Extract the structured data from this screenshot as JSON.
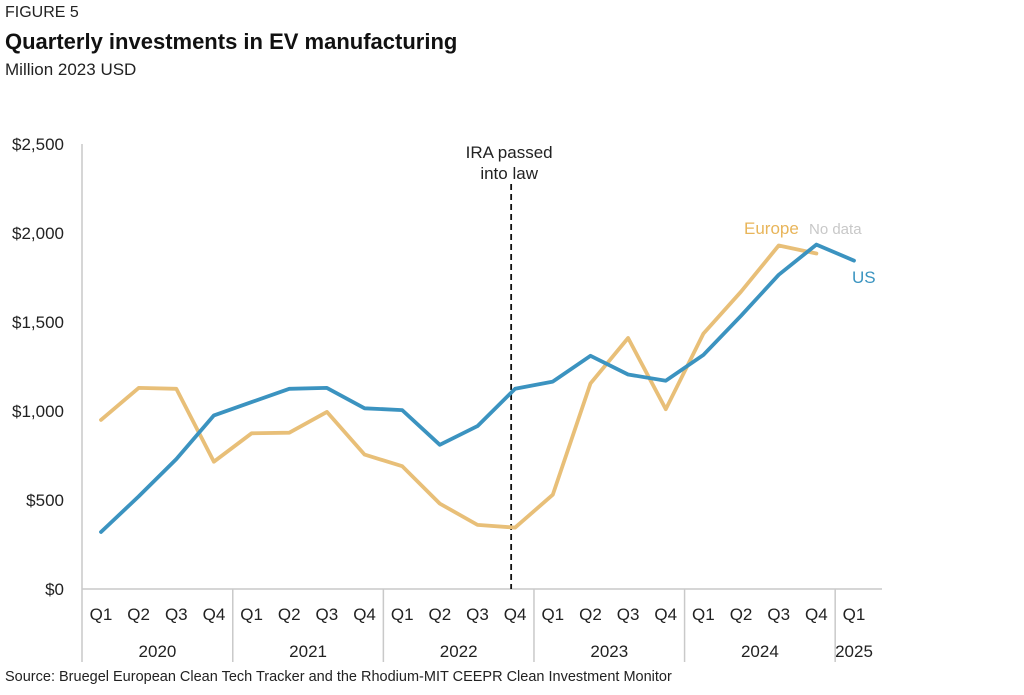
{
  "figure_label": "FIGURE 5",
  "title": "Quarterly investments in EV manufacturing",
  "subtitle": "Million 2023 USD",
  "source": "Source: Bruegel European Clean Tech Tracker and the Rhodium-MIT CEEPR Clean Investment Monitor",
  "colors": {
    "europe": "#e8bf78",
    "us": "#3b93c0",
    "axis": "#c9c9c9",
    "divider": "#c9c9c9"
  },
  "chart_data": {
    "type": "line",
    "ylim": [
      0,
      2500
    ],
    "y_ticks": [
      0,
      500,
      1000,
      1500,
      2000,
      2500
    ],
    "y_tick_labels": [
      "$0",
      "$500",
      "$1,000",
      "$1,500",
      "$2,000",
      "$2,500"
    ],
    "quarters": [
      "Q1",
      "Q2",
      "Q3",
      "Q4",
      "Q1",
      "Q2",
      "Q3",
      "Q4",
      "Q1",
      "Q2",
      "Q3",
      "Q4",
      "Q1",
      "Q2",
      "Q3",
      "Q4",
      "Q1",
      "Q2",
      "Q3",
      "Q4",
      "Q1"
    ],
    "years": [
      {
        "label": "2020",
        "start": 0,
        "end": 3
      },
      {
        "label": "2021",
        "start": 4,
        "end": 7
      },
      {
        "label": "2022",
        "start": 8,
        "end": 11
      },
      {
        "label": "2023",
        "start": 12,
        "end": 15
      },
      {
        "label": "2024",
        "start": 16,
        "end": 19
      },
      {
        "label": "2025",
        "start": 20,
        "end": 20
      }
    ],
    "series": [
      {
        "name": "Europe",
        "color": "#e8bf78",
        "values": [
          950,
          1130,
          1125,
          715,
          875,
          878,
          995,
          755,
          690,
          480,
          360,
          345,
          530,
          1155,
          1410,
          1010,
          1435,
          1670,
          1930,
          1885,
          null
        ]
      },
      {
        "name": "US",
        "color": "#3b93c0",
        "values": [
          320,
          520,
          730,
          975,
          1050,
          1125,
          1130,
          1015,
          1005,
          810,
          915,
          1125,
          1165,
          1310,
          1205,
          1170,
          1315,
          1535,
          1765,
          1935,
          1845
        ]
      }
    ],
    "annotations": [
      {
        "text_lines": [
          "IRA passed",
          "into law"
        ],
        "x_index": 11,
        "style": "dashed-vertical"
      },
      {
        "text": "No data",
        "series": "Europe"
      }
    ]
  }
}
